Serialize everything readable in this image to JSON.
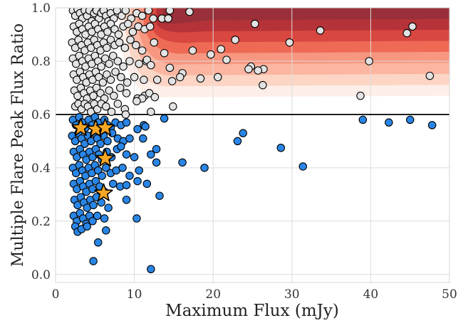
{
  "chart_data": {
    "type": "scatter",
    "xlabel": "Maximum Flux (mJy)",
    "ylabel": "Multiple Flare Peak Flux Ratio",
    "xlim": [
      0,
      50
    ],
    "ylim": [
      -0.03,
      1.0
    ],
    "x_ticks": [
      0,
      10,
      20,
      30,
      40,
      50
    ],
    "y_ticks": [
      0.0,
      0.2,
      0.4,
      0.6,
      0.8,
      1.0
    ],
    "x_tick_labels": [
      "0",
      "10",
      "20",
      "30",
      "40",
      "50"
    ],
    "y_tick_labels": [
      "0.0",
      "0.2",
      "0.4",
      "0.6",
      "0.8",
      "1.0"
    ],
    "grid": true,
    "threshold_line": {
      "y": 0.6,
      "color": "#000000"
    },
    "background_shading": {
      "colormap": "Reds",
      "region": "above threshold, flux above ~8 mJy",
      "colors": [
        "#fdeee8",
        "#fcd5c4",
        "#fbb5a0",
        "#f79780",
        "#ee6a55",
        "#d84740",
        "#b53338",
        "#993039"
      ]
    },
    "series": [
      {
        "role": "above threshold",
        "marker": "circle",
        "color": "#e3e3e3",
        "points": [
          [
            2.2,
            0.99
          ],
          [
            2.5,
            0.97
          ],
          [
            2.8,
            0.995
          ],
          [
            3.1,
            0.98
          ],
          [
            3.4,
            0.96
          ],
          [
            3.7,
            0.99
          ],
          [
            4.0,
            0.97
          ],
          [
            4.3,
            0.99
          ],
          [
            4.6,
            0.95
          ],
          [
            4.9,
            0.98
          ],
          [
            5.2,
            0.99
          ],
          [
            5.5,
            0.96
          ],
          [
            5.8,
            0.98
          ],
          [
            6.1,
            0.99
          ],
          [
            6.4,
            0.97
          ],
          [
            6.7,
            0.95
          ],
          [
            7.0,
            0.98
          ],
          [
            7.4,
            0.96
          ],
          [
            7.8,
            0.99
          ],
          [
            8.4,
            0.97
          ],
          [
            8.9,
            0.99
          ],
          [
            9.6,
            0.96
          ],
          [
            10.3,
            0.98
          ],
          [
            11.0,
            0.97
          ],
          [
            11.8,
            0.99
          ],
          [
            12.4,
            0.96
          ],
          [
            2.3,
            0.93
          ],
          [
            2.7,
            0.91
          ],
          [
            3.0,
            0.94
          ],
          [
            3.4,
            0.92
          ],
          [
            3.8,
            0.9
          ],
          [
            4.2,
            0.93
          ],
          [
            4.6,
            0.91
          ],
          [
            5.0,
            0.94
          ],
          [
            5.4,
            0.92
          ],
          [
            5.8,
            0.9
          ],
          [
            6.2,
            0.93
          ],
          [
            6.6,
            0.91
          ],
          [
            7.0,
            0.94
          ],
          [
            7.5,
            0.92
          ],
          [
            8.0,
            0.9
          ],
          [
            8.6,
            0.93
          ],
          [
            9.2,
            0.94
          ],
          [
            9.8,
            0.91
          ],
          [
            10.5,
            0.93
          ],
          [
            11.3,
            0.92
          ],
          [
            12.0,
            0.93
          ],
          [
            2.1,
            0.87
          ],
          [
            2.5,
            0.85
          ],
          [
            2.9,
            0.88
          ],
          [
            3.3,
            0.86
          ],
          [
            3.7,
            0.84
          ],
          [
            4.1,
            0.87
          ],
          [
            4.5,
            0.85
          ],
          [
            4.9,
            0.88
          ],
          [
            5.3,
            0.86
          ],
          [
            5.7,
            0.84
          ],
          [
            6.1,
            0.87
          ],
          [
            6.5,
            0.85
          ],
          [
            7.0,
            0.88
          ],
          [
            7.5,
            0.86
          ],
          [
            8.1,
            0.87
          ],
          [
            8.8,
            0.85
          ],
          [
            9.5,
            0.88
          ],
          [
            10.2,
            0.86
          ],
          [
            11.0,
            0.84
          ],
          [
            12.5,
            0.87
          ],
          [
            2.2,
            0.81
          ],
          [
            2.6,
            0.79
          ],
          [
            3.0,
            0.82
          ],
          [
            3.4,
            0.8
          ],
          [
            3.8,
            0.78
          ],
          [
            4.2,
            0.81
          ],
          [
            4.6,
            0.79
          ],
          [
            5.0,
            0.82
          ],
          [
            5.4,
            0.8
          ],
          [
            5.8,
            0.78
          ],
          [
            6.3,
            0.81
          ],
          [
            6.8,
            0.79
          ],
          [
            7.3,
            0.82
          ],
          [
            7.9,
            0.8
          ],
          [
            8.6,
            0.78
          ],
          [
            9.4,
            0.8
          ],
          [
            10.6,
            0.79
          ],
          [
            11.5,
            0.8
          ],
          [
            2.3,
            0.75
          ],
          [
            2.7,
            0.73
          ],
          [
            3.1,
            0.76
          ],
          [
            3.5,
            0.74
          ],
          [
            3.9,
            0.72
          ],
          [
            4.3,
            0.75
          ],
          [
            4.7,
            0.73
          ],
          [
            5.1,
            0.76
          ],
          [
            5.5,
            0.74
          ],
          [
            6.0,
            0.72
          ],
          [
            6.5,
            0.75
          ],
          [
            7.0,
            0.73
          ],
          [
            7.6,
            0.76
          ],
          [
            8.3,
            0.74
          ],
          [
            9.1,
            0.72
          ],
          [
            10.0,
            0.74
          ],
          [
            11.2,
            0.73
          ],
          [
            2.4,
            0.69
          ],
          [
            2.8,
            0.67
          ],
          [
            3.2,
            0.7
          ],
          [
            3.6,
            0.68
          ],
          [
            4.0,
            0.66
          ],
          [
            4.4,
            0.69
          ],
          [
            4.8,
            0.67
          ],
          [
            5.2,
            0.7
          ],
          [
            5.7,
            0.68
          ],
          [
            6.2,
            0.66
          ],
          [
            6.8,
            0.69
          ],
          [
            7.4,
            0.67
          ],
          [
            8.2,
            0.7
          ],
          [
            9.0,
            0.68
          ],
          [
            10.4,
            0.66
          ],
          [
            11.3,
            0.67
          ],
          [
            2.5,
            0.63
          ],
          [
            2.9,
            0.64
          ],
          [
            3.3,
            0.62
          ],
          [
            3.7,
            0.64
          ],
          [
            4.1,
            0.63
          ],
          [
            4.5,
            0.61
          ],
          [
            4.9,
            0.64
          ],
          [
            5.3,
            0.62
          ],
          [
            5.8,
            0.64
          ],
          [
            6.4,
            0.63
          ],
          [
            7.1,
            0.61
          ],
          [
            7.9,
            0.64
          ],
          [
            8.8,
            0.62
          ],
          [
            14.5,
            0.99
          ],
          [
            17.0,
            0.985
          ],
          [
            13.5,
            0.96
          ],
          [
            14.3,
            0.96
          ],
          [
            25.3,
            0.94
          ],
          [
            33.6,
            0.915
          ],
          [
            45.3,
            0.93
          ],
          [
            44.6,
            0.905
          ],
          [
            22.8,
            0.88
          ],
          [
            29.7,
            0.87
          ],
          [
            21.0,
            0.845
          ],
          [
            17.4,
            0.84
          ],
          [
            19.7,
            0.825
          ],
          [
            21.7,
            0.805
          ],
          [
            24.8,
            0.78
          ],
          [
            13.8,
            0.83
          ],
          [
            11.6,
            0.805
          ],
          [
            12.1,
            0.785
          ],
          [
            14.5,
            0.775
          ],
          [
            26.4,
            0.77
          ],
          [
            39.8,
            0.8
          ],
          [
            24.5,
            0.77
          ],
          [
            25.7,
            0.765
          ],
          [
            16.1,
            0.755
          ],
          [
            15.8,
            0.74
          ],
          [
            12.9,
            0.73
          ],
          [
            14.8,
            0.725
          ],
          [
            18.4,
            0.735
          ],
          [
            20.6,
            0.74
          ],
          [
            47.5,
            0.745
          ],
          [
            26.3,
            0.71
          ],
          [
            11.9,
            0.68
          ],
          [
            12.6,
            0.665
          ],
          [
            38.7,
            0.67
          ],
          [
            14.9,
            0.63
          ],
          [
            12.1,
            0.61
          ],
          [
            11.0,
            0.66
          ],
          [
            10.3,
            0.65
          ],
          [
            8.9,
            0.6
          ]
        ]
      },
      {
        "role": "below threshold",
        "marker": "circle",
        "color": "#2a86e6",
        "points": [
          [
            2.2,
            0.58
          ],
          [
            2.6,
            0.56
          ],
          [
            3.0,
            0.59
          ],
          [
            3.4,
            0.57
          ],
          [
            3.8,
            0.55
          ],
          [
            4.2,
            0.58
          ],
          [
            4.6,
            0.56
          ],
          [
            5.0,
            0.59
          ],
          [
            5.4,
            0.57
          ],
          [
            5.8,
            0.55
          ],
          [
            6.2,
            0.58
          ],
          [
            6.6,
            0.56
          ],
          [
            7.0,
            0.55
          ],
          [
            7.6,
            0.57
          ],
          [
            8.3,
            0.56
          ],
          [
            9.0,
            0.57
          ],
          [
            10.4,
            0.545
          ],
          [
            11.2,
            0.56
          ],
          [
            11.4,
            0.555
          ],
          [
            13.8,
            0.585
          ],
          [
            39.0,
            0.58
          ],
          [
            42.3,
            0.57
          ],
          [
            45.0,
            0.58
          ],
          [
            47.8,
            0.56
          ],
          [
            2.1,
            0.52
          ],
          [
            2.5,
            0.5
          ],
          [
            2.9,
            0.53
          ],
          [
            3.3,
            0.51
          ],
          [
            3.7,
            0.49
          ],
          [
            4.1,
            0.52
          ],
          [
            4.5,
            0.5
          ],
          [
            4.9,
            0.53
          ],
          [
            5.3,
            0.51
          ],
          [
            5.7,
            0.49
          ],
          [
            6.1,
            0.52
          ],
          [
            6.6,
            0.5
          ],
          [
            7.2,
            0.53
          ],
          [
            7.9,
            0.51
          ],
          [
            8.6,
            0.5
          ],
          [
            9.4,
            0.51
          ],
          [
            11.1,
            0.51
          ],
          [
            23.8,
            0.53
          ],
          [
            23.1,
            0.5
          ],
          [
            28.6,
            0.475
          ],
          [
            2.3,
            0.46
          ],
          [
            2.7,
            0.44
          ],
          [
            3.1,
            0.47
          ],
          [
            3.5,
            0.45
          ],
          [
            3.9,
            0.43
          ],
          [
            4.3,
            0.46
          ],
          [
            4.7,
            0.44
          ],
          [
            5.1,
            0.47
          ],
          [
            5.5,
            0.45
          ],
          [
            5.9,
            0.43
          ],
          [
            6.5,
            0.46
          ],
          [
            7.1,
            0.44
          ],
          [
            7.8,
            0.47
          ],
          [
            8.3,
            0.48
          ],
          [
            9.0,
            0.45
          ],
          [
            10.0,
            0.44
          ],
          [
            12.1,
            0.45
          ],
          [
            12.8,
            0.47
          ],
          [
            2.2,
            0.4
          ],
          [
            2.6,
            0.38
          ],
          [
            3.0,
            0.41
          ],
          [
            3.4,
            0.39
          ],
          [
            3.8,
            0.37
          ],
          [
            4.2,
            0.4
          ],
          [
            4.6,
            0.38
          ],
          [
            5.0,
            0.41
          ],
          [
            5.4,
            0.39
          ],
          [
            5.9,
            0.37
          ],
          [
            6.4,
            0.4
          ],
          [
            7.0,
            0.38
          ],
          [
            7.7,
            0.39
          ],
          [
            8.5,
            0.4
          ],
          [
            9.4,
            0.37
          ],
          [
            10.6,
            0.39
          ],
          [
            12.8,
            0.42
          ],
          [
            16.1,
            0.42
          ],
          [
            18.9,
            0.4
          ],
          [
            31.4,
            0.405
          ],
          [
            2.3,
            0.34
          ],
          [
            2.7,
            0.32
          ],
          [
            3.1,
            0.35
          ],
          [
            3.5,
            0.33
          ],
          [
            3.9,
            0.31
          ],
          [
            4.3,
            0.34
          ],
          [
            4.7,
            0.32
          ],
          [
            5.1,
            0.35
          ],
          [
            5.6,
            0.33
          ],
          [
            6.2,
            0.31
          ],
          [
            7.3,
            0.34
          ],
          [
            8.2,
            0.33
          ],
          [
            9.0,
            0.335
          ],
          [
            10.4,
            0.35
          ],
          [
            11.6,
            0.34
          ],
          [
            13.2,
            0.295
          ],
          [
            2.4,
            0.28
          ],
          [
            2.8,
            0.26
          ],
          [
            3.2,
            0.29
          ],
          [
            3.6,
            0.27
          ],
          [
            4.0,
            0.25
          ],
          [
            4.4,
            0.28
          ],
          [
            4.8,
            0.26
          ],
          [
            5.2,
            0.29
          ],
          [
            5.8,
            0.27
          ],
          [
            6.7,
            0.25
          ],
          [
            9.0,
            0.28
          ],
          [
            2.3,
            0.22
          ],
          [
            2.7,
            0.2
          ],
          [
            3.1,
            0.23
          ],
          [
            3.5,
            0.21
          ],
          [
            3.9,
            0.19
          ],
          [
            4.3,
            0.22
          ],
          [
            4.7,
            0.2
          ],
          [
            5.3,
            0.22
          ],
          [
            6.2,
            0.21
          ],
          [
            10.3,
            0.21
          ],
          [
            2.5,
            0.18
          ],
          [
            2.8,
            0.16
          ],
          [
            3.3,
            0.17
          ],
          [
            4.0,
            0.18
          ],
          [
            6.4,
            0.165
          ],
          [
            5.4,
            0.12
          ],
          [
            4.8,
            0.05
          ],
          [
            12.1,
            0.02
          ]
        ]
      },
      {
        "role": "highlighted",
        "marker": "star",
        "color": "#f5a623",
        "points": [
          [
            3.2,
            0.55
          ],
          [
            5.1,
            0.545
          ],
          [
            6.3,
            0.55
          ],
          [
            6.3,
            0.435
          ],
          [
            6.1,
            0.305
          ]
        ]
      }
    ]
  }
}
